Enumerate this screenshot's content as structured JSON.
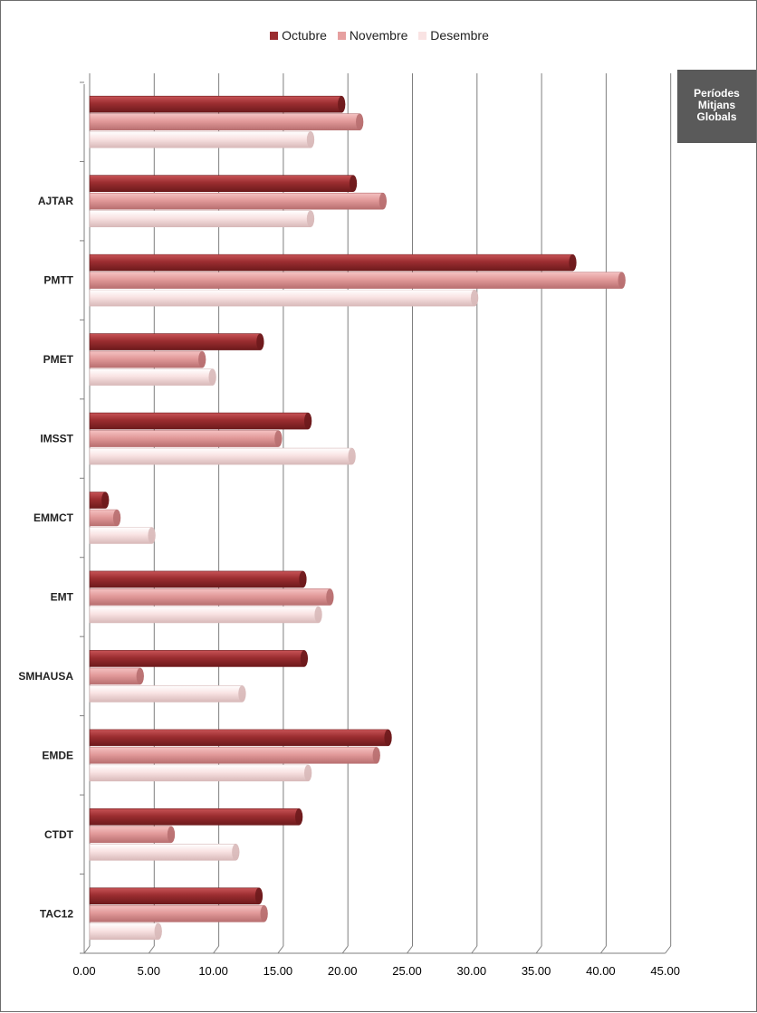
{
  "chart_data": {
    "type": "bar",
    "orientation": "horizontal",
    "title": "",
    "xlabel": "",
    "ylabel": "",
    "categories": [
      "",
      "AJTAR",
      "PMTT",
      "PMET",
      "IMSST",
      "EMMCT",
      "EMT",
      "SMHAUSA",
      "EMDE",
      "CTDT",
      "TAC12"
    ],
    "series": [
      {
        "name": "Octubre",
        "color": "#9b2d30",
        "values": [
          19.5,
          20.4,
          37.4,
          13.2,
          16.9,
          1.2,
          16.5,
          16.6,
          23.1,
          16.2,
          13.1
        ]
      },
      {
        "name": "Novembre",
        "color": "#e6a0a0",
        "values": [
          20.9,
          22.7,
          41.2,
          8.7,
          14.6,
          2.1,
          18.6,
          3.9,
          22.2,
          6.3,
          13.5
        ]
      },
      {
        "name": "Desembre",
        "color": "#f9e3e3",
        "values": [
          17.1,
          17.1,
          29.8,
          9.5,
          20.3,
          4.8,
          17.7,
          11.8,
          16.9,
          11.3,
          5.3
        ]
      }
    ],
    "xlim": [
      0,
      45
    ],
    "x_ticks": [
      "0.00",
      "5.00",
      "10.00",
      "15.00",
      "20.00",
      "25.00",
      "30.00",
      "35.00",
      "40.00",
      "45.00"
    ],
    "grid": true,
    "legend_position": "top"
  },
  "badge": {
    "lines": [
      "Períodes",
      "Mitjans",
      "Globals"
    ]
  }
}
